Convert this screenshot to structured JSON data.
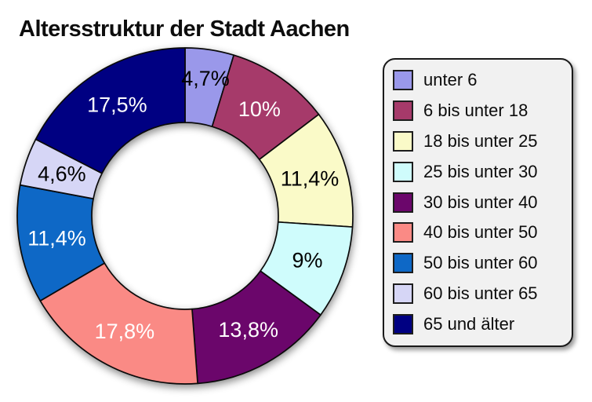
{
  "title": "Altersstruktur der Stadt Aachen",
  "chart_data": {
    "type": "pie",
    "subtype": "donut",
    "title": "Altersstruktur der Stadt Aachen",
    "legend_position": "right",
    "legend_background": "#f1f1f1",
    "start_angle_deg": 0,
    "direction": "clockwise",
    "slices": [
      {
        "label": "unter 6",
        "value": 4.7,
        "display": "4,7%",
        "color": "#9A98EA",
        "text_color": "#000000"
      },
      {
        "label": "6 bis unter 18",
        "value": 10,
        "display": "10%",
        "color": "#A63A6A",
        "text_color": "#FFFFFF"
      },
      {
        "label": "18 bis unter 25",
        "value": 11.4,
        "display": "11,4%",
        "color": "#FAFAC8",
        "text_color": "#000000"
      },
      {
        "label": "25 bis unter 30",
        "value": 9,
        "display": "9%",
        "color": "#CFFCFC",
        "text_color": "#000000"
      },
      {
        "label": "30 bis unter 40",
        "value": 13.8,
        "display": "13,8%",
        "color": "#6B066B",
        "text_color": "#FFFFFF"
      },
      {
        "label": "40 bis unter 50",
        "value": 17.8,
        "display": "17,8%",
        "color": "#FA8A85",
        "text_color": "#FFFFFF"
      },
      {
        "label": "50 bis unter 60",
        "value": 11.4,
        "display": "11,4%",
        "color": "#0E68C6",
        "text_color": "#FFFFFF"
      },
      {
        "label": "60 bis unter 65",
        "value": 4.6,
        "display": "4,6%",
        "color": "#D6D6F6",
        "text_color": "#000000"
      },
      {
        "label": "65 und älter",
        "value": 17.5,
        "display": "17,5%",
        "color": "#000082",
        "text_color": "#FFFFFF"
      }
    ]
  }
}
